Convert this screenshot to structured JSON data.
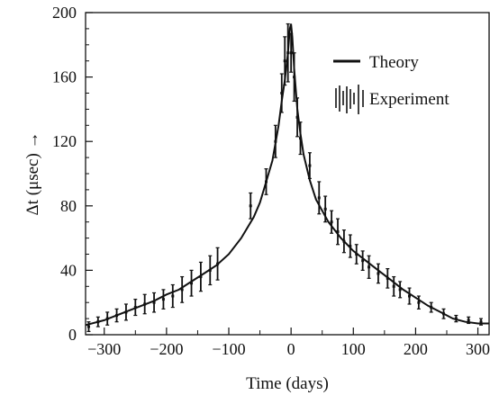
{
  "chart_data": {
    "type": "line",
    "xlabel": "Time (days)",
    "ylabel": "Δt (μsec) →",
    "xlim": [
      -330,
      318
    ],
    "ylim": [
      0,
      200
    ],
    "x_ticks": [
      -300,
      -200,
      -100,
      0,
      100,
      200,
      300
    ],
    "y_ticks": [
      0,
      40,
      80,
      120,
      160,
      200
    ],
    "grid": false,
    "legend_position": "top-right",
    "legend": [
      {
        "label": "Theory",
        "style": "line"
      },
      {
        "label": "Experiment",
        "style": "error-bars"
      }
    ],
    "series": [
      {
        "name": "Theory",
        "x": [
          -330,
          -300,
          -260,
          -220,
          -200,
          -180,
          -160,
          -140,
          -120,
          -100,
          -80,
          -60,
          -50,
          -40,
          -30,
          -20,
          -15,
          -10,
          -5,
          -2,
          0,
          2,
          5,
          10,
          15,
          20,
          30,
          40,
          50,
          60,
          80,
          100,
          120,
          140,
          160,
          180,
          200,
          220,
          240,
          260,
          280,
          300,
          318
        ],
        "y": [
          6,
          9,
          15,
          21,
          25,
          28,
          33,
          38,
          43,
          50,
          60,
          73,
          82,
          95,
          108,
          130,
          145,
          158,
          175,
          190,
          193,
          185,
          165,
          140,
          125,
          112,
          96,
          84,
          77,
          70,
          60,
          52,
          46,
          40,
          34,
          28,
          23,
          18,
          14,
          10,
          8,
          7,
          7
        ]
      },
      {
        "name": "Experiment",
        "x": [
          -325,
          -310,
          -295,
          -280,
          -265,
          -250,
          -235,
          -220,
          -205,
          -190,
          -175,
          -160,
          -145,
          -130,
          -118,
          -65,
          -40,
          -25,
          -15,
          -10,
          -5,
          0,
          5,
          10,
          15,
          30,
          45,
          55,
          65,
          75,
          85,
          95,
          105,
          115,
          125,
          140,
          155,
          165,
          175,
          190,
          205,
          225,
          245,
          265,
          285,
          305
        ],
        "y": [
          5,
          8,
          10,
          12,
          14,
          17,
          19,
          20,
          22,
          24,
          28,
          32,
          36,
          40,
          44,
          80,
          95,
          120,
          150,
          170,
          175,
          175,
          160,
          135,
          122,
          105,
          85,
          78,
          70,
          64,
          58,
          55,
          50,
          46,
          42,
          38,
          35,
          30,
          28,
          24,
          20,
          17,
          13,
          10,
          9,
          8
        ],
        "err": [
          3,
          3,
          4,
          4,
          5,
          5,
          6,
          6,
          6,
          7,
          8,
          8,
          9,
          9,
          10,
          8,
          8,
          10,
          12,
          15,
          18,
          12,
          15,
          12,
          10,
          8,
          10,
          8,
          7,
          8,
          7,
          7,
          6,
          6,
          7,
          6,
          6,
          6,
          5,
          5,
          4,
          3,
          3,
          2,
          2,
          2
        ]
      }
    ]
  }
}
